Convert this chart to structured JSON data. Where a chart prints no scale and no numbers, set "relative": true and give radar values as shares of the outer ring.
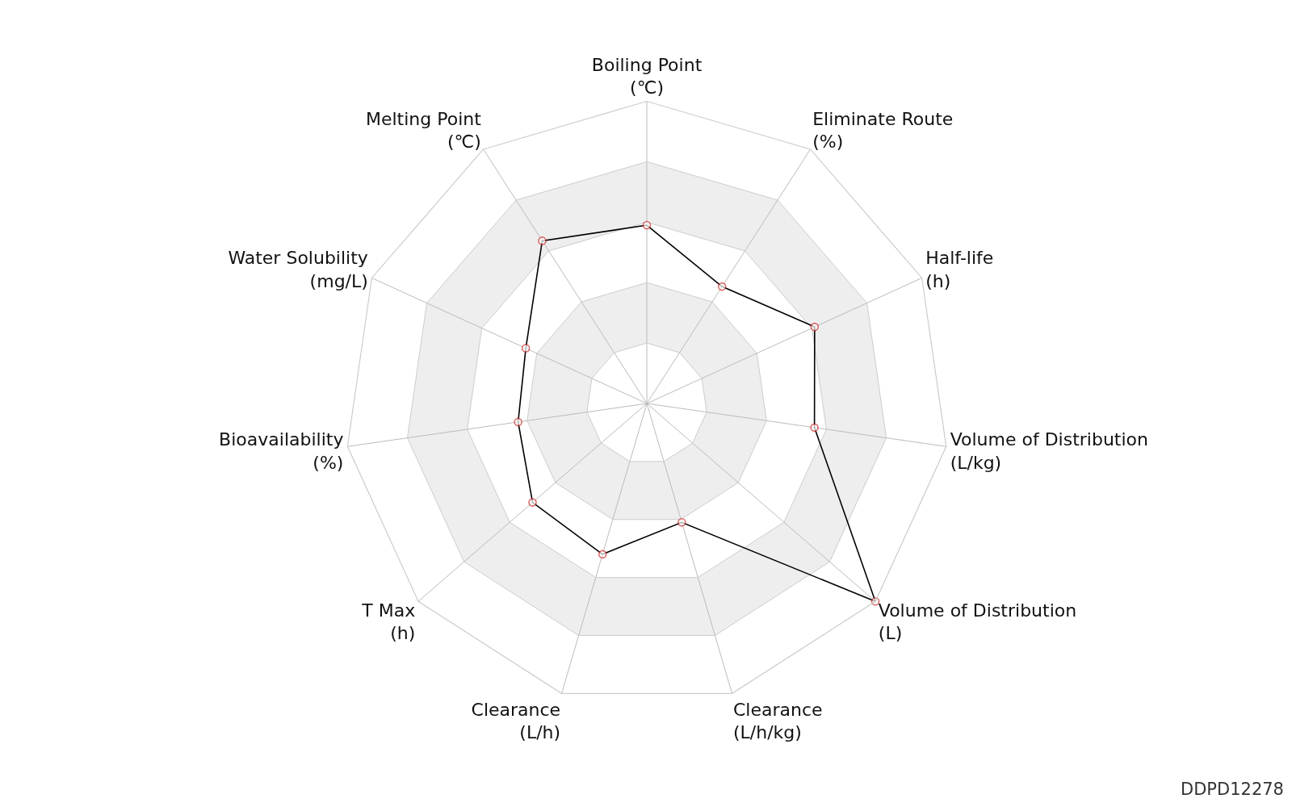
{
  "chart_data": {
    "type": "radar",
    "relative": true,
    "categories": [
      "Boiling Point\n(℃)",
      "Eliminate Route\n(%)",
      "Half-life\n(h)",
      "Volume of Distribution\n(L/kg)",
      "Volume of Distribution\n(L)",
      "Clearance\n(L/h/kg)",
      "Clearance\n(L/h)",
      "T Max\n(h)",
      "Bioavailability\n(%)",
      "Water Solubility\n(mg/L)",
      "Melting Point\n(℃)"
    ],
    "series": [
      {
        "color": "#000000",
        "values": [
          0.59,
          0.46,
          0.61,
          0.56,
          1.0,
          0.41,
          0.52,
          0.5,
          0.43,
          0.44,
          0.64
        ]
      }
    ],
    "marker": "circle",
    "line_style": "solid",
    "grid": true,
    "annotations": [
      "DDPD12278"
    ]
  }
}
